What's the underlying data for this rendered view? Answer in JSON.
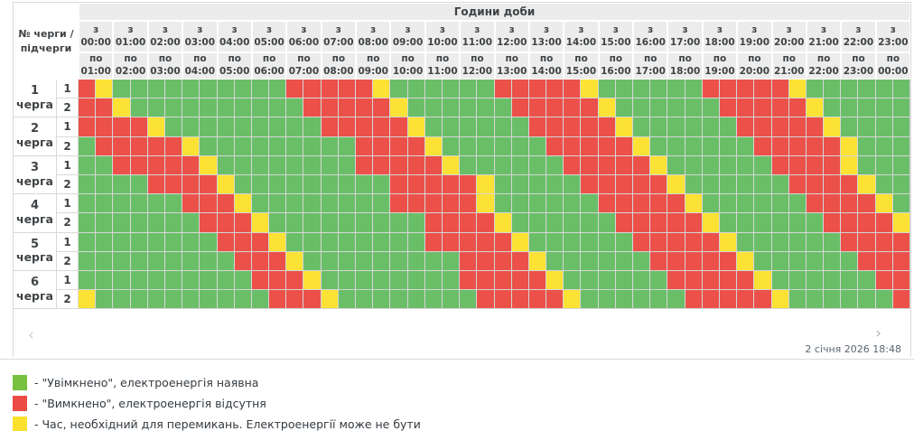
{
  "table": {
    "corner_label": "№ черги / підчерги",
    "hours_title": "Години доби",
    "from_prefix": "з",
    "to_prefix": "по",
    "hours": [
      {
        "from": "00:00",
        "to": "01:00"
      },
      {
        "from": "01:00",
        "to": "02:00"
      },
      {
        "from": "02:00",
        "to": "03:00"
      },
      {
        "from": "03:00",
        "to": "04:00"
      },
      {
        "from": "04:00",
        "to": "05:00"
      },
      {
        "from": "05:00",
        "to": "06:00"
      },
      {
        "from": "06:00",
        "to": "07:00"
      },
      {
        "from": "07:00",
        "to": "08:00"
      },
      {
        "from": "08:00",
        "to": "09:00"
      },
      {
        "from": "09:00",
        "to": "10:00"
      },
      {
        "from": "10:00",
        "to": "11:00"
      },
      {
        "from": "11:00",
        "to": "12:00"
      },
      {
        "from": "12:00",
        "to": "13:00"
      },
      {
        "from": "13:00",
        "to": "14:00"
      },
      {
        "from": "14:00",
        "to": "15:00"
      },
      {
        "from": "15:00",
        "to": "16:00"
      },
      {
        "from": "16:00",
        "to": "17:00"
      },
      {
        "from": "17:00",
        "to": "18:00"
      },
      {
        "from": "18:00",
        "to": "19:00"
      },
      {
        "from": "19:00",
        "to": "20:00"
      },
      {
        "from": "20:00",
        "to": "21:00"
      },
      {
        "from": "21:00",
        "to": "22:00"
      },
      {
        "from": "22:00",
        "to": "23:00"
      },
      {
        "from": "23:00",
        "to": "00:00"
      }
    ],
    "slot_legend": "each character = 30 min; G=on, R=off, Y=switching",
    "queues": [
      {
        "num": "1",
        "word": "черга",
        "subrows": [
          {
            "sub": "1",
            "cells": "RYGGGGGGGGGGRRRRRYGGGGGGRRRRRYGGGGGGRRRRRYGGGGGG"
          },
          {
            "sub": "2",
            "cells": "RRYGGGGGGGGGGRRRRRYGGGGGGRRRRRYGGGGGGRRRRRYGGGGG"
          }
        ]
      },
      {
        "num": "2",
        "word": "черга",
        "subrows": [
          {
            "sub": "1",
            "cells": "RRRRYGGGGGGGGGRRRRRYGGGGGGRRRRRYGGGGGGRRRRRYGGGG"
          },
          {
            "sub": "2",
            "cells": "GRRRRRYGGGGGGGGGRRRRYGGGGGGRRRRRYGGGGGGRRRRRYGGG"
          }
        ]
      },
      {
        "num": "3",
        "word": "черга",
        "subrows": [
          {
            "sub": "1",
            "cells": "GGRRRRRYGGGGGGGGRRRRRYGGGGGGRRRRRYGGGGGGRRRRYGGG"
          },
          {
            "sub": "2",
            "cells": "GGGGRRRRYGGGGGGGGGRRRRRYGGGGGRRRRRYGGGGGGRRRRYGG"
          }
        ]
      },
      {
        "num": "4",
        "word": "черга",
        "subrows": [
          {
            "sub": "1",
            "cells": "GGGGGGRRRYGGGGGGGGRRRRRYGGGGGGRRRRRYGGGGGGRRRRYG"
          },
          {
            "sub": "2",
            "cells": "GGGGGGGRRRYGGGGGGGGGRRRRYGGGGGGRRRRRYGGGGGGRRRRY"
          }
        ]
      },
      {
        "num": "5",
        "word": "черга",
        "subrows": [
          {
            "sub": "1",
            "cells": "GGGGGGGGRRRYGGGGGGGGRRRRRYGGGGGGRRRRRYGGGGGGRRRR"
          },
          {
            "sub": "2",
            "cells": "GGGGGGGGGRRRYGGGGGGGGGRRRRYGGGGGGRRRRRYGGGGGGRRR"
          }
        ]
      },
      {
        "num": "6",
        "word": "черга",
        "subrows": [
          {
            "sub": "1",
            "cells": "GGGGGGGGGGRRRYGGGGGGGGRRRRRYGGGGGGRRRRRYGGGGGGRR"
          },
          {
            "sub": "2",
            "cells": "YGGGGGGGGGGRRRYGGGGGGGGRRRRRYGGGGGGRRRRRYGGGGGGR"
          }
        ]
      }
    ]
  },
  "footer": {
    "prev_arrow": "‹",
    "next_arrow": "›",
    "timestamp": "2 січня 2026 18:48"
  },
  "legend": [
    {
      "status": "on",
      "text": "- \"Увімкнено\", електроенергія наявна"
    },
    {
      "status": "off",
      "text": "- \"Вимкнено\", електроенергія відсутня"
    },
    {
      "status": "switch",
      "text": "- Час, необхідний для перемикань. Електроенергії може не бути"
    }
  ],
  "colors": {
    "cell_on": "#6abe68",
    "cell_off": "#eb5149",
    "cell_switch": "#fbe234",
    "legend_on": "#76c13f",
    "legend_off": "#ec4b45",
    "legend_switch": "#fae12d",
    "header_bg": "#ececec",
    "border": "#d9d9d9",
    "text": "#3f4346",
    "timestamp_text": "#5c6670"
  }
}
